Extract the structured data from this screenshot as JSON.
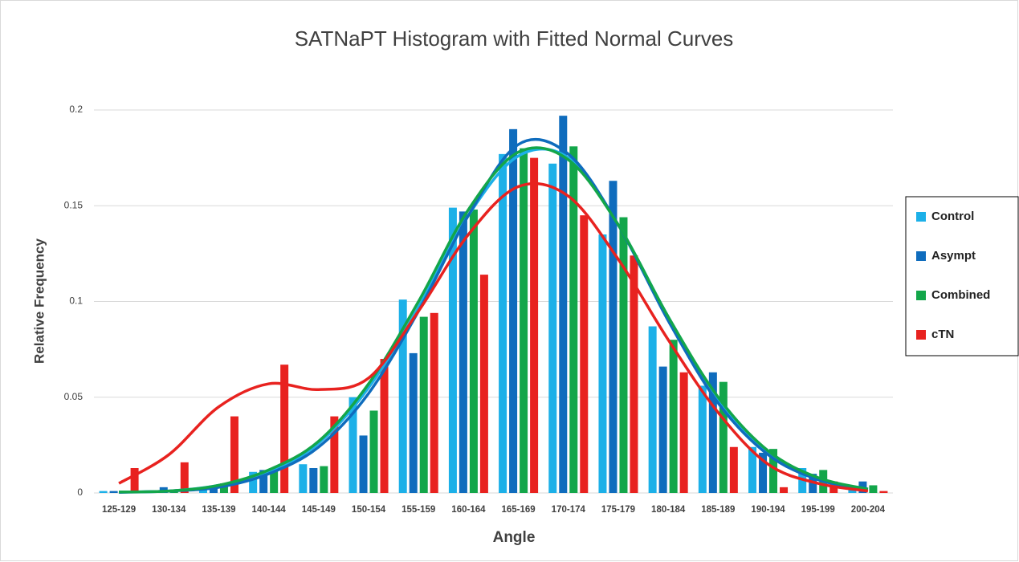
{
  "chart_data": {
    "type": "bar",
    "title": "SATNaPT Histogram with Fitted Normal Curves",
    "x_label": "Angle",
    "y_label": "Relative Frequency",
    "categories": [
      "125-129",
      "130-134",
      "135-139",
      "140-144",
      "145-149",
      "150-154",
      "155-159",
      "160-164",
      "165-169",
      "170-174",
      "175-179",
      "180-184",
      "185-189",
      "190-194",
      "195-199",
      "200-204"
    ],
    "series": [
      {
        "name": "Control",
        "color": "#1cb0e8",
        "values": [
          0.001,
          0.001,
          0.003,
          0.011,
          0.015,
          0.05,
          0.101,
          0.149,
          0.177,
          0.172,
          0.135,
          0.087,
          0.056,
          0.024,
          0.013,
          0.002
        ],
        "fit": [
          0.0005,
          0.001,
          0.004,
          0.011,
          0.026,
          0.055,
          0.097,
          0.145,
          0.176,
          0.175,
          0.14,
          0.092,
          0.049,
          0.021,
          0.007,
          0.002
        ]
      },
      {
        "name": "Asympt",
        "color": "#0f6cbd",
        "values": [
          0.001,
          0.003,
          0.004,
          0.012,
          0.013,
          0.03,
          0.073,
          0.147,
          0.19,
          0.197,
          0.163,
          0.066,
          0.063,
          0.021,
          0.01,
          0.006
        ],
        "fit": [
          0.0003,
          0.001,
          0.003,
          0.01,
          0.024,
          0.052,
          0.095,
          0.145,
          0.182,
          0.177,
          0.14,
          0.09,
          0.047,
          0.02,
          0.007,
          0.002
        ]
      },
      {
        "name": "Combined",
        "color": "#13a64a",
        "values": [
          0.001,
          0.001,
          0.005,
          0.012,
          0.014,
          0.043,
          0.092,
          0.148,
          0.18,
          0.181,
          0.144,
          0.08,
          0.058,
          0.023,
          0.012,
          0.004
        ],
        "fit": [
          0.0005,
          0.001,
          0.004,
          0.012,
          0.027,
          0.057,
          0.1,
          0.148,
          0.178,
          0.174,
          0.14,
          0.092,
          0.05,
          0.022,
          0.008,
          0.002
        ]
      },
      {
        "name": "cTN",
        "color": "#e8221f",
        "values": [
          0.013,
          0.016,
          0.04,
          0.067,
          0.04,
          0.07,
          0.094,
          0.114,
          0.175,
          0.145,
          0.124,
          0.063,
          0.024,
          0.003,
          0.006,
          0.001
        ],
        "fit": [
          0.005,
          0.02,
          0.045,
          0.057,
          0.054,
          0.06,
          0.095,
          0.135,
          0.16,
          0.155,
          0.122,
          0.08,
          0.042,
          0.015,
          0.005,
          0.001
        ]
      }
    ],
    "ylim": [
      0,
      0.2
    ],
    "yticks": [
      0,
      0.05,
      0.1,
      0.15,
      0.2
    ],
    "grid": true,
    "legend": "right"
  }
}
